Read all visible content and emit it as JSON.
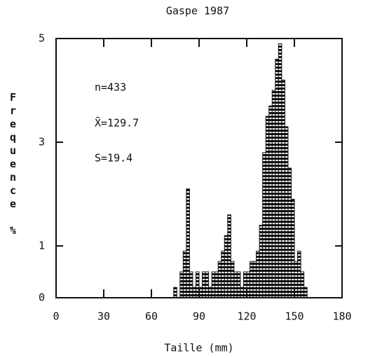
{
  "chart_data": {
    "type": "histogram",
    "title": "Gaspe 1987",
    "xlabel": "Taille (mm)",
    "ylabel": "Frequence %",
    "annotations": [
      "n=433",
      "X̄=129.7",
      "S=19.4"
    ],
    "bins": [
      74,
      76,
      78,
      80,
      82,
      84,
      86,
      88,
      90,
      92,
      94,
      96,
      98,
      100,
      102,
      104,
      106,
      108,
      110,
      112,
      114,
      116,
      118,
      120,
      122,
      124,
      126,
      128,
      130,
      132,
      134,
      136,
      138,
      140,
      142,
      144,
      146,
      148,
      150,
      152,
      154,
      156,
      158
    ],
    "values": [
      0.2,
      0,
      0.5,
      0.9,
      2.1,
      0.5,
      0.2,
      0.5,
      0.2,
      0.5,
      0.5,
      0.2,
      0.5,
      0.5,
      0.7,
      0.9,
      1.2,
      1.6,
      0.7,
      0.5,
      0.5,
      0.2,
      0.5,
      0.5,
      0.7,
      0.7,
      0.9,
      1.4,
      2.8,
      3.5,
      3.7,
      4.0,
      4.6,
      4.9,
      4.2,
      3.3,
      2.5,
      1.9,
      0.7,
      0.9,
      0.5,
      0.2
    ],
    "color": "#111111",
    "xlim": [
      0,
      180
    ],
    "xticks": [
      0,
      30,
      60,
      90,
      120,
      150,
      180
    ],
    "ylim": [
      0,
      5
    ],
    "yticks": [
      0,
      1,
      3,
      5
    ]
  }
}
